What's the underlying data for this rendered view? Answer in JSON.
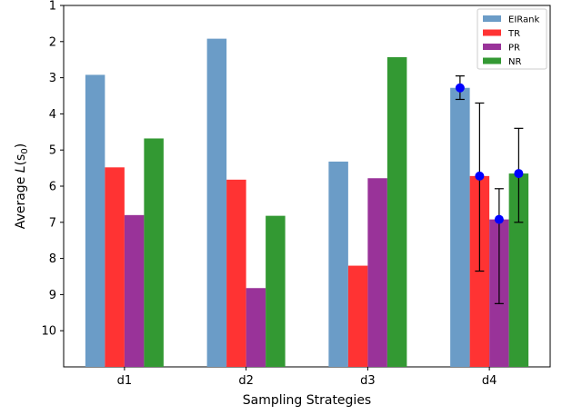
{
  "chart_data": {
    "type": "bar",
    "title": "",
    "xlabel": "Sampling Strategies",
    "ylabel_prefix": "Average ",
    "ylabel_var": "L",
    "ylabel_arg_open": "(s",
    "ylabel_sub": "0",
    "ylabel_arg_close": ")",
    "categories": [
      "d1",
      "d2",
      "d3",
      "d4"
    ],
    "ylim": [
      11,
      1
    ],
    "y_inverted": true,
    "yticks": [
      1,
      2,
      3,
      4,
      5,
      6,
      7,
      8,
      9,
      10
    ],
    "series": [
      {
        "name": "EIRank",
        "color": "#6b9cc7",
        "values": [
          2.92,
          1.92,
          5.32,
          3.28
        ]
      },
      {
        "name": "TR",
        "color": "#ff3333",
        "values": [
          5.48,
          5.82,
          8.2,
          5.72
        ]
      },
      {
        "name": "PR",
        "color": "#993399",
        "values": [
          6.8,
          8.82,
          5.78,
          6.92
        ]
      },
      {
        "name": "NR",
        "color": "#339933",
        "values": [
          4.68,
          6.82,
          2.43,
          5.65
        ]
      }
    ],
    "error_bars": {
      "category": "d4",
      "marker_color": "#0000ff",
      "points": [
        {
          "series": "EIRank",
          "value": 3.28,
          "low": 2.95,
          "high": 3.6
        },
        {
          "series": "TR",
          "value": 5.72,
          "low": 3.7,
          "high": 8.35
        },
        {
          "series": "PR",
          "value": 6.92,
          "low": 6.07,
          "high": 9.25
        },
        {
          "series": "NR",
          "value": 5.65,
          "low": 4.4,
          "high": 7.0
        }
      ]
    },
    "legend": {
      "placement": "top-right"
    }
  }
}
